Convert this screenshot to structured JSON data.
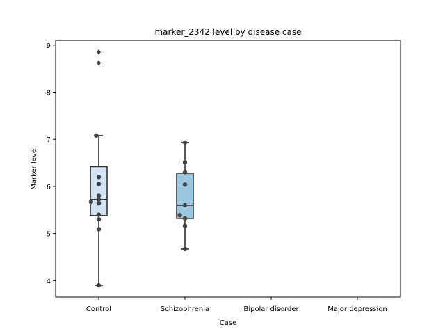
{
  "chart_data": {
    "type": "box",
    "title": "marker_2342 level by disease case",
    "xlabel": "Case",
    "ylabel": "Marker level",
    "categories": [
      "Control",
      "Schizophrenia",
      "Bipolar disorder",
      "Major depression"
    ],
    "ylim": [
      3.65,
      9.1
    ],
    "yticks": [
      4,
      5,
      6,
      7,
      8,
      9
    ],
    "grid": false,
    "boxes": [
      {
        "category": "Control",
        "whisker_low": 3.9,
        "q1": 5.38,
        "median": 5.72,
        "q3": 6.42,
        "whisker_high": 7.08,
        "fliers": [
          8.62,
          8.85
        ],
        "color": "#d2e3f3"
      },
      {
        "category": "Schizophrenia",
        "whisker_low": 4.67,
        "q1": 5.32,
        "median": 5.6,
        "q3": 6.28,
        "whisker_high": 6.93,
        "fliers": [],
        "color": "#9ac8e0"
      }
    ],
    "points": [
      {
        "category": "Control",
        "offset": -0.03,
        "value": 7.08
      },
      {
        "category": "Control",
        "offset": 0.0,
        "value": 6.2
      },
      {
        "category": "Control",
        "offset": 0.0,
        "value": 6.05
      },
      {
        "category": "Control",
        "offset": 0.0,
        "value": 5.8
      },
      {
        "category": "Control",
        "offset": 0.0,
        "value": 5.72
      },
      {
        "category": "Control",
        "offset": -0.09,
        "value": 5.67
      },
      {
        "category": "Control",
        "offset": 0.0,
        "value": 5.64
      },
      {
        "category": "Control",
        "offset": 0.0,
        "value": 5.4
      },
      {
        "category": "Control",
        "offset": 0.0,
        "value": 5.3
      },
      {
        "category": "Control",
        "offset": 0.0,
        "value": 5.09
      },
      {
        "category": "Control",
        "offset": 0.0,
        "value": 3.9
      },
      {
        "category": "Schizophrenia",
        "offset": 0.0,
        "value": 6.93
      },
      {
        "category": "Schizophrenia",
        "offset": 0.0,
        "value": 6.51
      },
      {
        "category": "Schizophrenia",
        "offset": 0.0,
        "value": 6.3
      },
      {
        "category": "Schizophrenia",
        "offset": 0.0,
        "value": 6.04
      },
      {
        "category": "Schizophrenia",
        "offset": 0.0,
        "value": 5.6
      },
      {
        "category": "Schizophrenia",
        "offset": -0.06,
        "value": 5.39
      },
      {
        "category": "Schizophrenia",
        "offset": 0.0,
        "value": 5.32
      },
      {
        "category": "Schizophrenia",
        "offset": 0.0,
        "value": 5.16
      },
      {
        "category": "Schizophrenia",
        "offset": 0.0,
        "value": 4.67
      }
    ],
    "box_edge_color": "#333333",
    "point_color": "#444444",
    "flier_color": "#444444"
  }
}
